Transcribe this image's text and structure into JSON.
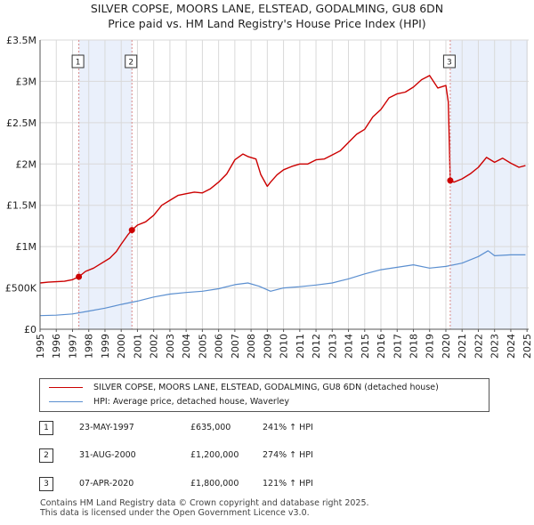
{
  "chart_data": {
    "type": "line",
    "title": "SILVER COPSE, MOORS LANE, ELSTEAD, GODALMING, GU8 6DN",
    "subtitle": "Price paid vs. HM Land Registry's House Price Index (HPI)",
    "xlim": [
      1995,
      2025.1
    ],
    "ylim": [
      0,
      3500000
    ],
    "x_ticks": [
      "1995",
      "1996",
      "1997",
      "1998",
      "1999",
      "2000",
      "2001",
      "2002",
      "2003",
      "2004",
      "2005",
      "2006",
      "2007",
      "2008",
      "2009",
      "2010",
      "2011",
      "2012",
      "2013",
      "2014",
      "2015",
      "2016",
      "2017",
      "2018",
      "2019",
      "2020",
      "2021",
      "2022",
      "2023",
      "2024",
      "2025"
    ],
    "y_ticks": [
      {
        "value": 0,
        "label": "£0"
      },
      {
        "value": 500000,
        "label": "£500K"
      },
      {
        "value": 1000000,
        "label": "£1M"
      },
      {
        "value": 1500000,
        "label": "£1.5M"
      },
      {
        "value": 2000000,
        "label": "£2M"
      },
      {
        "value": 2500000,
        "label": "£2.5M"
      },
      {
        "value": 3000000,
        "label": "£3M"
      },
      {
        "value": 3500000,
        "label": "£3.5M"
      }
    ],
    "series": [
      {
        "name": "SILVER COPSE, MOORS LANE, ELSTEAD, GODALMING, GU8 6DN (detached house)",
        "color": "#cc0000",
        "x": [
          1995.0,
          1995.5,
          1996.0,
          1996.5,
          1997.0,
          1997.39,
          1997.8,
          1998.3,
          1998.8,
          1999.3,
          1999.7,
          2000.0,
          2000.4,
          2000.66,
          2001.0,
          2001.5,
          2002.0,
          2002.5,
          2003.0,
          2003.5,
          2004.0,
          2004.5,
          2005.0,
          2005.5,
          2006.0,
          2006.5,
          2007.0,
          2007.5,
          2007.8,
          2008.3,
          2008.6,
          2009.0,
          2009.2,
          2009.6,
          2010.0,
          2010.5,
          2011.0,
          2011.5,
          2012.0,
          2012.5,
          2013.0,
          2013.5,
          2014.0,
          2014.5,
          2015.0,
          2015.5,
          2016.0,
          2016.5,
          2017.0,
          2017.5,
          2018.0,
          2018.5,
          2019.0,
          2019.5,
          2020.0,
          2020.15,
          2020.27,
          2020.5,
          2021.0,
          2021.5,
          2022.0,
          2022.5,
          2023.0,
          2023.5,
          2024.0,
          2024.5,
          2024.9
        ],
        "y": [
          560000,
          570000,
          575000,
          580000,
          600000,
          635000,
          700000,
          740000,
          800000,
          860000,
          940000,
          1030000,
          1140000,
          1200000,
          1260000,
          1300000,
          1380000,
          1500000,
          1560000,
          1620000,
          1640000,
          1660000,
          1650000,
          1700000,
          1780000,
          1880000,
          2050000,
          2120000,
          2090000,
          2060000,
          1870000,
          1730000,
          1780000,
          1870000,
          1930000,
          1970000,
          2000000,
          2000000,
          2050000,
          2060000,
          2110000,
          2160000,
          2260000,
          2360000,
          2420000,
          2570000,
          2660000,
          2800000,
          2850000,
          2870000,
          2930000,
          3020000,
          3070000,
          2920000,
          2950000,
          2750000,
          1800000,
          1780000,
          1820000,
          1880000,
          1960000,
          2080000,
          2020000,
          2070000,
          2010000,
          1960000,
          1980000
        ]
      },
      {
        "name": "HPI: Average price, detached house, Waverley",
        "color": "#5b8fd0",
        "x": [
          1995.0,
          1996.0,
          1997.0,
          1998.0,
          1999.0,
          2000.0,
          2001.0,
          2002.0,
          2003.0,
          2004.0,
          2005.0,
          2006.0,
          2007.0,
          2007.8,
          2008.5,
          2009.2,
          2010.0,
          2011.0,
          2012.0,
          2013.0,
          2014.0,
          2015.0,
          2016.0,
          2017.0,
          2018.0,
          2019.0,
          2020.0,
          2021.0,
          2022.0,
          2022.6,
          2023.0,
          2024.0,
          2024.9
        ],
        "y": [
          165000,
          170000,
          185000,
          220000,
          255000,
          300000,
          340000,
          390000,
          425000,
          445000,
          460000,
          490000,
          540000,
          560000,
          520000,
          460000,
          500000,
          515000,
          535000,
          560000,
          610000,
          670000,
          720000,
          750000,
          780000,
          740000,
          760000,
          800000,
          880000,
          950000,
          890000,
          900000,
          900000
        ]
      }
    ],
    "sales": [
      {
        "id": "1",
        "x": 1997.39,
        "y": 635000
      },
      {
        "id": "2",
        "x": 2000.66,
        "y": 1200000
      },
      {
        "id": "3",
        "x": 2020.27,
        "y": 1800000
      }
    ],
    "shade_until": 2025.0
  },
  "legend": {
    "series1": "SILVER COPSE, MOORS LANE, ELSTEAD, GODALMING, GU8 6DN (detached house)",
    "series2": "HPI: Average price, detached house, Waverley"
  },
  "transactions": [
    {
      "num": "1",
      "date": "23-MAY-1997",
      "price": "£635,000",
      "hpi": "241% ↑ HPI"
    },
    {
      "num": "2",
      "date": "31-AUG-2000",
      "price": "£1,200,000",
      "hpi": "274% ↑ HPI"
    },
    {
      "num": "3",
      "date": "07-APR-2020",
      "price": "£1,800,000",
      "hpi": "121% ↑ HPI"
    }
  ],
  "footer": {
    "line1": "Contains HM Land Registry data © Crown copyright and database right 2025.",
    "line2": "This data is licensed under the Open Government Licence v3.0."
  }
}
